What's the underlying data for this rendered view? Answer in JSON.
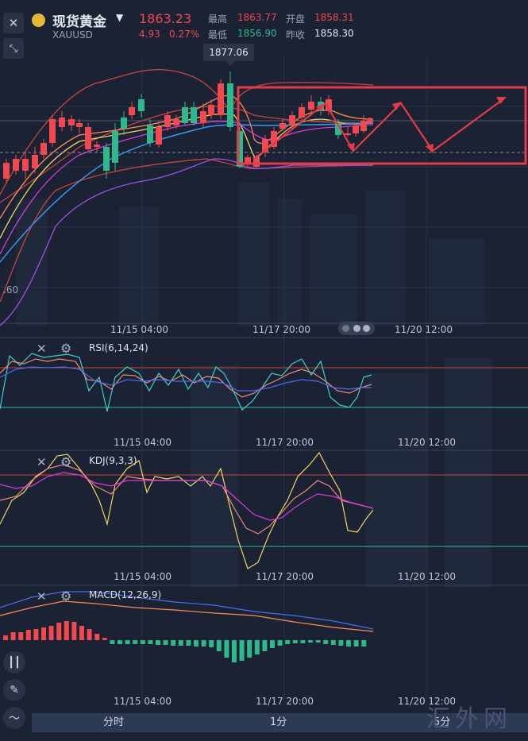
{
  "header": {
    "title": "现货黄金",
    "symbol": "XAUUSD",
    "price": "1863.23",
    "change": "4.93",
    "change_pct": "0.27%",
    "high_label": "最高",
    "high_value": "1863.77",
    "open_label": "开盘",
    "open_value": "1858.31",
    "low_label": "最低",
    "low_value": "1856.90",
    "prev_close_label": "昨收",
    "prev_close_value": "1858.30",
    "dropdown_icon": "caret-down-icon",
    "close_icon": "close-icon",
    "expand_icon": "expand-arrows-icon"
  },
  "main_chart": {
    "tooltip_price": "1877.06",
    "left_axis_label": ".60",
    "time_labels": [
      "11/15 04:00",
      "11/17 20:00",
      "11/20 12:00"
    ]
  },
  "rsi": {
    "label": "RSI(6,14,24)",
    "time_labels": [
      "11/15 04:00",
      "11/17 20:00",
      "11/20 12:00"
    ]
  },
  "kdj": {
    "label": "KDJ(9,3,3)",
    "time_labels": [
      "11/15 04:00",
      "11/17 20:00",
      "11/20 12:00"
    ]
  },
  "macd": {
    "label": "MACD(12,26,9)",
    "time_labels": [
      "11/15 04:00",
      "11/17 20:00",
      "11/20 12:00"
    ]
  },
  "tabs": [
    "分时",
    "1分",
    "5分"
  ],
  "watermark": "汇外网",
  "colors": {
    "background": "#1b2233",
    "up": "#f0494f",
    "down": "#2fb88b",
    "annotation": "#e23b48",
    "ma_orange": "#ff8a5c",
    "ma_yellow": "#f2d463",
    "ma_magenta": "#d83cd8",
    "ma_blue": "#3a9dff",
    "ma_purple": "#9b52e6",
    "boll": "#c8453f"
  },
  "side_icons": [
    "candlestick-icon",
    "pencil-icon",
    "chart-line-icon"
  ]
}
